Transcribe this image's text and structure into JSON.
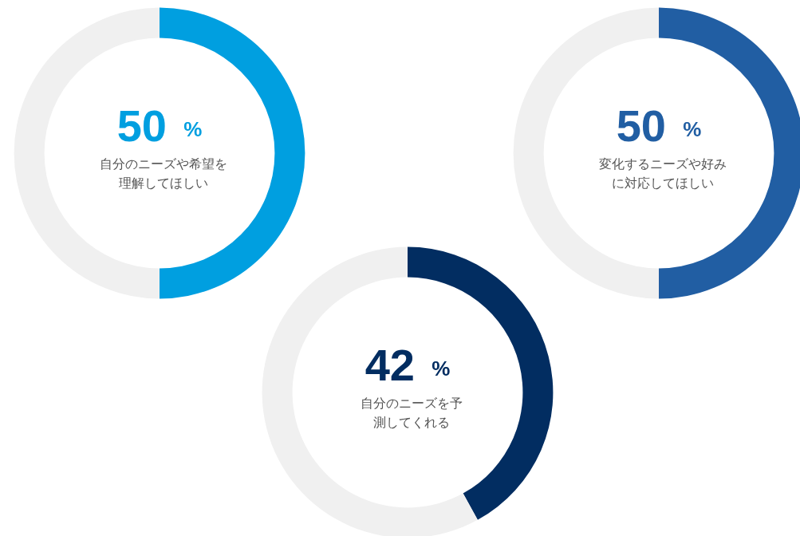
{
  "chart_data": [
    {
      "type": "donut",
      "title": "自分のニーズや希望を理解してほしい",
      "categories": [
        null,
        null
      ],
      "values": [
        50,
        50
      ],
      "colors": [
        "#009fe0",
        "#f0f0f0"
      ],
      "value_labels": [
        "50 %",
        null
      ]
    },
    {
      "type": "donut",
      "title": "変化するニーズや好みに対応してほしい",
      "categories": [
        null,
        null
      ],
      "values": [
        50,
        50
      ],
      "colors": [
        "#215ea3",
        "#f0f0f0"
      ],
      "value_labels": [
        "50 %",
        null
      ]
    },
    {
      "type": "donut",
      "title": "自分のニーズを予測してくれる",
      "categories": [
        null,
        null
      ],
      "values": [
        42,
        58
      ],
      "colors": [
        "#022d61",
        "#f0f0f0"
      ],
      "value_labels": [
        "42 %",
        null
      ]
    }
  ]
}
